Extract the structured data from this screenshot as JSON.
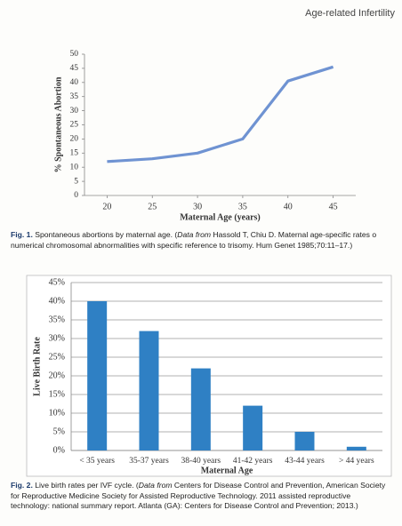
{
  "header": {
    "title": "Age-related Infertility"
  },
  "chart_data": [
    {
      "type": "line",
      "x": [
        20,
        25,
        30,
        35,
        40,
        45
      ],
      "values": [
        12,
        13,
        15,
        20,
        40.5,
        45.5
      ],
      "color": "#6f93d2",
      "xlim": [
        17.5,
        47.5
      ],
      "xticks": [
        20,
        25,
        30,
        35,
        40,
        45
      ],
      "ylim": [
        0,
        50
      ],
      "yticks": [
        0,
        5,
        10,
        15,
        20,
        25,
        30,
        35,
        40,
        45,
        50
      ],
      "xlabel": "Maternal Age (years)",
      "ylabel": "% Spontaneous Abortion",
      "grid": false
    },
    {
      "type": "bar",
      "categories": [
        "< 35 years",
        "35-37 years",
        "38-40 years",
        "41-42 years",
        "43-44 years",
        "> 44 years"
      ],
      "values": [
        40,
        32,
        22,
        12,
        5,
        1
      ],
      "color": "#2f80c4",
      "ylim": [
        0,
        45
      ],
      "yticks": [
        {
          "value": 0,
          "label": "0%"
        },
        {
          "value": 5,
          "label": "5%"
        },
        {
          "value": 10,
          "label": "10%"
        },
        {
          "value": 15,
          "label": "15%"
        },
        {
          "value": 20,
          "label": "20%"
        },
        {
          "value": 25,
          "label": "25%"
        },
        {
          "value": 30,
          "label": "30%"
        },
        {
          "value": 35,
          "label": "35%"
        },
        {
          "value": 40,
          "label": "40%"
        },
        {
          "value": 45,
          "label": "45%"
        }
      ],
      "xlabel": "Maternal Age",
      "ylabel": "Live Birth Rate",
      "grid": true
    }
  ],
  "captions": [
    {
      "label": "Fig. 1.",
      "text": "Spontaneous abortions by maternal age. (",
      "source_prefix": "Data from",
      "source": "Hassold T, Chiu D. Maternal age-specific rates o numerical chromosomal abnormalities with specific reference to trisomy. Hum Genet 1985;70:11–17.)"
    },
    {
      "label": "Fig. 2.",
      "text": "Live birth rates per IVF cycle. (",
      "source_prefix": "Data from",
      "source": "Centers for Disease Control and Prevention, American Society for Reproductive Medicine Society for Assisted Reproductive Technology. 2011 assisted reproductive technology: national summary report. Atlanta (GA): Centers for Disease Control and Prevention; 2013.)"
    }
  ]
}
